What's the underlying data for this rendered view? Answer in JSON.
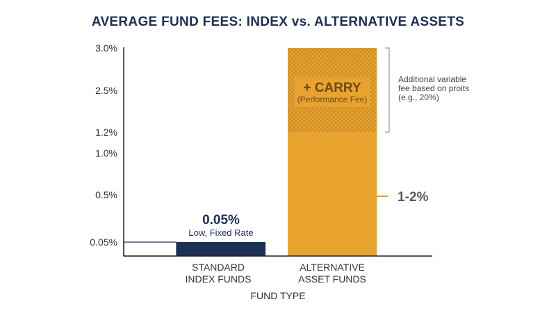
{
  "chart_data": {
    "type": "bar",
    "title": "AVERAGE FUND FEES: INDEX vs. ALTERNATIVE ASSETS",
    "xlabel": "FUND TYPE",
    "ylabel": "",
    "y_ticks": [
      {
        "label": "3.0%",
        "value": 3.0
      },
      {
        "label": "2.5%",
        "value": 2.5
      },
      {
        "label": "1.2%",
        "value": 1.2
      },
      {
        "label": "1.0%",
        "value": 1.0
      },
      {
        "label": "0.5%",
        "value": 0.5
      },
      {
        "label": "0.05%",
        "value": 0.05
      }
    ],
    "categories": [
      {
        "line1": "STANDARD",
        "line2": "INDEX FUNDS"
      },
      {
        "line1": "ALTERNATIVE",
        "line2": "ASSET FUNDS"
      }
    ],
    "bars": [
      {
        "category_index": 0,
        "segments": [
          {
            "kind": "solid",
            "from": 0,
            "to": 0.05,
            "color": "#1c2f55"
          }
        ],
        "value_label": "0.05%",
        "sub_label": "Low, Fixed Rate"
      },
      {
        "category_index": 1,
        "segments": [
          {
            "kind": "solid",
            "from": 0,
            "to": 1.2,
            "color": "#e8a32e"
          },
          {
            "kind": "hatched",
            "from": 1.2,
            "to": 3.0,
            "color": "#e8a32e"
          }
        ],
        "carry_label": "+ CARRY",
        "carry_sub": "(Performance Fee)",
        "range_label": "1-2%",
        "bracket_note": [
          "Additional variable",
          "fee based on proits",
          "(e.g., 20%)"
        ]
      }
    ],
    "colors": {
      "navy": "#1c2f55",
      "gold": "#e8a32e",
      "hatch": "#c88a28",
      "axis": "#222222",
      "bracket": "#9a9a9a"
    }
  }
}
